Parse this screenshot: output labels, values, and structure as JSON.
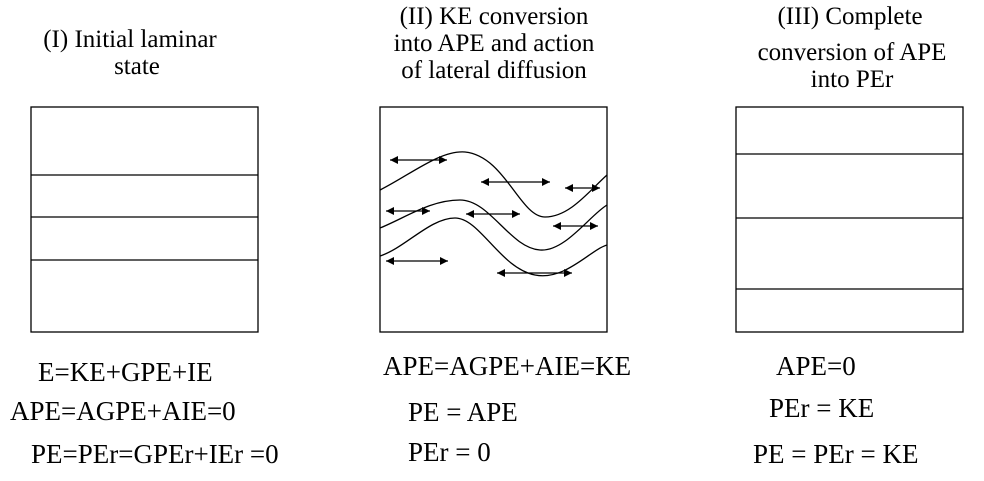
{
  "panels": [
    {
      "title_lines": [
        "(I) Initial laminar",
        "state"
      ],
      "equations": [
        "E=KE+GPE+IE",
        "APE=AGPE+AIE=0",
        "PE=PEr=GPEr+IEr =0"
      ]
    },
    {
      "title_lines": [
        "(II) KE conversion",
        "into APE and action",
        "of lateral diffusion"
      ],
      "equations": [
        "APE=AGPE+AIE=KE",
        "PE = APE",
        "PEr = 0"
      ]
    },
    {
      "title_lines": [
        "(III) Complete",
        "conversion of APE",
        "into PEr"
      ],
      "equations": [
        "APE=0",
        "PEr = KE",
        "PE = PEr = KE"
      ]
    }
  ]
}
